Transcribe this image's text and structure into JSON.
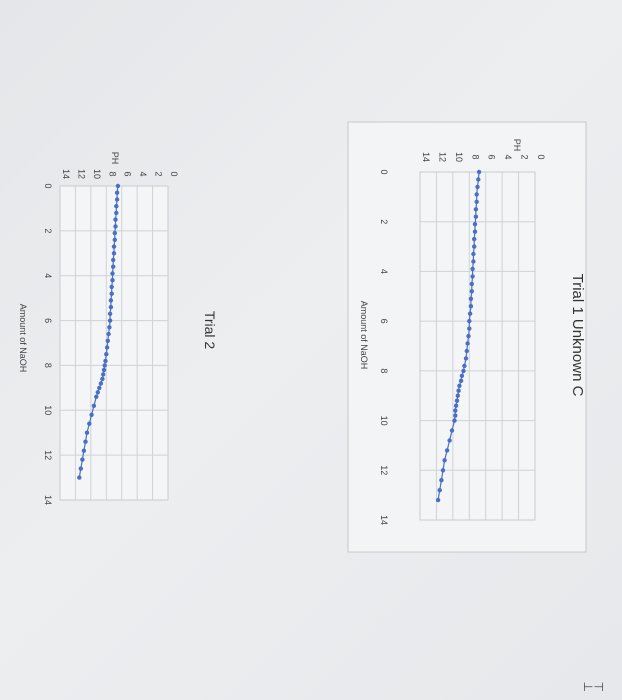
{
  "chart_data": [
    {
      "type": "line",
      "title": "Trial 1 Unknown C",
      "xlabel": "Amount of NaOH",
      "ylabel": "PH",
      "xlim": [
        0,
        14
      ],
      "ylim": [
        0,
        14
      ],
      "xticks": [
        "0",
        "2",
        "4",
        "6",
        "8",
        "10",
        "12",
        "14"
      ],
      "yticks": [
        "0",
        "2",
        "4",
        "6",
        "8",
        "10",
        "12",
        "14"
      ],
      "grid": true,
      "series": [
        {
          "color": "#4a6fc4",
          "x": [
            0,
            0.3,
            0.6,
            0.9,
            1.2,
            1.5,
            1.8,
            2.1,
            2.4,
            2.7,
            3.0,
            3.3,
            3.6,
            3.9,
            4.2,
            4.5,
            4.8,
            5.1,
            5.4,
            5.7,
            6.0,
            6.3,
            6.6,
            6.9,
            7.2,
            7.5,
            7.8,
            8.0,
            8.2,
            8.4,
            8.6,
            8.8,
            9.0,
            9.2,
            9.4,
            9.6,
            9.8,
            10.0,
            10.4,
            10.8,
            11.2,
            11.6,
            12.0,
            12.4,
            12.8,
            13.2
          ],
          "y": [
            6.8,
            6.9,
            7.0,
            7.1,
            7.1,
            7.2,
            7.2,
            7.3,
            7.3,
            7.4,
            7.4,
            7.5,
            7.5,
            7.6,
            7.6,
            7.7,
            7.7,
            7.8,
            7.8,
            7.9,
            8.0,
            8.0,
            8.1,
            8.2,
            8.3,
            8.4,
            8.6,
            8.7,
            8.9,
            9.0,
            9.2,
            9.3,
            9.4,
            9.5,
            9.6,
            9.7,
            9.7,
            9.8,
            10.1,
            10.4,
            10.7,
            11.0,
            11.2,
            11.4,
            11.6,
            11.8
          ]
        }
      ]
    },
    {
      "type": "line",
      "title": "Trial 2",
      "xlabel": "Amount of NaOH",
      "ylabel": "PH",
      "xlim": [
        0,
        14
      ],
      "ylim": [
        0,
        14
      ],
      "xticks": [
        "0",
        "2",
        "4",
        "6",
        "8",
        "10",
        "12",
        "14"
      ],
      "yticks": [
        "0",
        "2",
        "4",
        "6",
        "8",
        "10",
        "12",
        "14"
      ],
      "grid": true,
      "series": [
        {
          "color": "#4a6fc4",
          "x": [
            0,
            0.3,
            0.6,
            0.9,
            1.2,
            1.5,
            1.8,
            2.1,
            2.4,
            2.7,
            3.0,
            3.3,
            3.6,
            3.9,
            4.2,
            4.5,
            4.8,
            5.1,
            5.4,
            5.7,
            6.0,
            6.3,
            6.6,
            6.9,
            7.2,
            7.5,
            7.8,
            8.0,
            8.2,
            8.4,
            8.6,
            8.8,
            9.0,
            9.2,
            9.4,
            9.8,
            10.2,
            10.6,
            11.0,
            11.4,
            11.8,
            12.2,
            12.6,
            13.0
          ],
          "y": [
            6.5,
            6.6,
            6.6,
            6.7,
            6.7,
            6.8,
            6.8,
            6.9,
            6.9,
            7.0,
            7.0,
            7.1,
            7.1,
            7.2,
            7.2,
            7.3,
            7.3,
            7.4,
            7.4,
            7.5,
            7.5,
            7.6,
            7.7,
            7.8,
            7.9,
            8.0,
            8.1,
            8.2,
            8.3,
            8.4,
            8.5,
            8.7,
            8.9,
            9.1,
            9.3,
            9.6,
            9.9,
            10.2,
            10.5,
            10.7,
            10.9,
            11.1,
            11.3,
            11.5
          ]
        }
      ]
    }
  ],
  "mark": "⊢⊣"
}
